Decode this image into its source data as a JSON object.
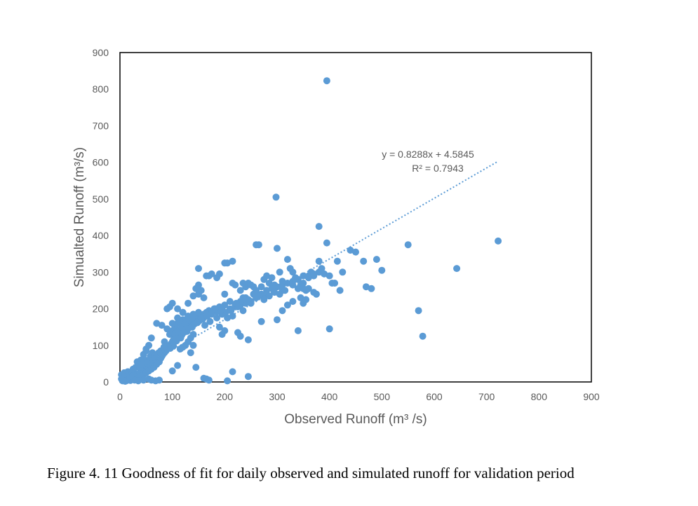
{
  "caption": "Figure 4. 11 Goodness of fit for daily observed and simulated runoff for validation period",
  "chart_data": {
    "type": "scatter",
    "xlabel": "Observed Runoff (m³ /s)",
    "ylabel": "Simualted Runoff (m³/s)",
    "xlim": [
      0,
      900
    ],
    "ylim": [
      0,
      900
    ],
    "xticks": [
      "0",
      "100",
      "200",
      "300",
      "400",
      "500",
      "600",
      "700",
      "800",
      "900"
    ],
    "yticks": [
      "0",
      "100",
      "200",
      "300",
      "400",
      "500",
      "600",
      "700",
      "800",
      "900"
    ],
    "marker_color": "#5B9BD5",
    "trendline": {
      "type": "linear",
      "slope": 0.8288,
      "intercept": 4.5845,
      "x_range": [
        10,
        720
      ],
      "equation_text": "y = 0.8288x + 4.5845",
      "r2_text": "R² = 0.7943",
      "style": "dotted"
    },
    "points": [
      [
        5,
        3
      ],
      [
        8,
        5
      ],
      [
        10,
        2
      ],
      [
        12,
        8
      ],
      [
        6,
        12
      ],
      [
        15,
        5
      ],
      [
        18,
        10
      ],
      [
        20,
        4
      ],
      [
        22,
        15
      ],
      [
        25,
        8
      ],
      [
        3,
        20
      ],
      [
        28,
        12
      ],
      [
        30,
        6
      ],
      [
        32,
        20
      ],
      [
        35,
        10
      ],
      [
        8,
        25
      ],
      [
        14,
        18
      ],
      [
        38,
        25
      ],
      [
        40,
        15
      ],
      [
        42,
        30
      ],
      [
        45,
        20
      ],
      [
        48,
        35
      ],
      [
        50,
        25
      ],
      [
        52,
        40
      ],
      [
        55,
        30
      ],
      [
        58,
        45
      ],
      [
        60,
        35
      ],
      [
        62,
        50
      ],
      [
        65,
        40
      ],
      [
        68,
        55
      ],
      [
        70,
        48
      ],
      [
        72,
        60
      ],
      [
        75,
        55
      ],
      [
        78,
        65
      ],
      [
        80,
        70
      ],
      [
        82,
        75
      ],
      [
        85,
        80
      ],
      [
        88,
        85
      ],
      [
        90,
        90
      ],
      [
        92,
        95
      ],
      [
        95,
        100
      ],
      [
        98,
        105
      ],
      [
        100,
        110
      ],
      [
        102,
        115
      ],
      [
        105,
        120
      ],
      [
        108,
        112
      ],
      [
        110,
        125
      ],
      [
        112,
        130
      ],
      [
        115,
        135
      ],
      [
        118,
        128
      ],
      [
        120,
        140
      ],
      [
        122,
        145
      ],
      [
        125,
        150
      ],
      [
        128,
        138
      ],
      [
        130,
        155
      ],
      [
        132,
        148
      ],
      [
        135,
        160
      ],
      [
        138,
        150
      ],
      [
        140,
        165
      ],
      [
        142,
        158
      ],
      [
        145,
        170
      ],
      [
        148,
        162
      ],
      [
        150,
        175
      ],
      [
        152,
        168
      ],
      [
        155,
        180
      ],
      [
        158,
        172
      ],
      [
        160,
        185
      ],
      [
        162,
        178
      ],
      [
        165,
        190
      ],
      [
        168,
        182
      ],
      [
        170,
        195
      ],
      [
        175,
        188
      ],
      [
        180,
        200
      ],
      [
        185,
        192
      ],
      [
        190,
        205
      ],
      [
        195,
        198
      ],
      [
        200,
        210
      ],
      [
        210,
        200
      ],
      [
        220,
        205
      ],
      [
        230,
        210
      ],
      [
        240,
        215
      ],
      [
        250,
        220
      ],
      [
        260,
        230
      ],
      [
        270,
        240
      ],
      [
        280,
        250
      ],
      [
        290,
        255
      ],
      [
        300,
        260
      ],
      [
        310,
        265
      ],
      [
        320,
        270
      ],
      [
        330,
        275
      ],
      [
        340,
        280
      ],
      [
        350,
        270
      ],
      [
        360,
        285
      ],
      [
        370,
        290
      ],
      [
        380,
        300
      ],
      [
        390,
        295
      ],
      [
        100,
        140
      ],
      [
        110,
        160
      ],
      [
        120,
        170
      ],
      [
        130,
        180
      ],
      [
        140,
        185
      ],
      [
        150,
        190
      ],
      [
        85,
        110
      ],
      [
        95,
        130
      ],
      [
        105,
        150
      ],
      [
        115,
        165
      ],
      [
        90,
        145
      ],
      [
        100,
        160
      ],
      [
        110,
        175
      ],
      [
        120,
        190
      ],
      [
        80,
        155
      ],
      [
        70,
        160
      ],
      [
        60,
        120
      ],
      [
        55,
        100
      ],
      [
        50,
        90
      ],
      [
        45,
        75
      ],
      [
        40,
        60
      ],
      [
        35,
        50
      ],
      [
        30,
        40
      ],
      [
        25,
        35
      ],
      [
        90,
        200
      ],
      [
        95,
        205
      ],
      [
        100,
        215
      ],
      [
        110,
        200
      ],
      [
        120,
        190
      ],
      [
        130,
        215
      ],
      [
        140,
        235
      ],
      [
        150,
        240
      ],
      [
        155,
        250
      ],
      [
        160,
        230
      ],
      [
        150,
        265
      ],
      [
        145,
        255
      ],
      [
        165,
        290
      ],
      [
        170,
        290
      ],
      [
        175,
        295
      ],
      [
        150,
        310
      ],
      [
        190,
        295
      ],
      [
        185,
        285
      ],
      [
        200,
        325
      ],
      [
        205,
        325
      ],
      [
        215,
        330
      ],
      [
        215,
        270
      ],
      [
        220,
        265
      ],
      [
        230,
        250
      ],
      [
        235,
        270
      ],
      [
        240,
        260
      ],
      [
        245,
        270
      ],
      [
        250,
        265
      ],
      [
        255,
        260
      ],
      [
        260,
        375
      ],
      [
        265,
        375
      ],
      [
        270,
        260
      ],
      [
        275,
        280
      ],
      [
        280,
        290
      ],
      [
        285,
        270
      ],
      [
        290,
        285
      ],
      [
        295,
        265
      ],
      [
        300,
        365
      ],
      [
        305,
        300
      ],
      [
        310,
        275
      ],
      [
        320,
        335
      ],
      [
        325,
        310
      ],
      [
        330,
        300
      ],
      [
        335,
        285
      ],
      [
        340,
        255
      ],
      [
        345,
        265
      ],
      [
        350,
        290
      ],
      [
        355,
        250
      ],
      [
        360,
        290
      ],
      [
        365,
        300
      ],
      [
        370,
        295
      ],
      [
        375,
        240
      ],
      [
        380,
        330
      ],
      [
        385,
        310
      ],
      [
        395,
        380
      ],
      [
        400,
        290
      ],
      [
        405,
        270
      ],
      [
        410,
        270
      ],
      [
        420,
        250
      ],
      [
        425,
        300
      ],
      [
        415,
        330
      ],
      [
        440,
        360
      ],
      [
        450,
        355
      ],
      [
        465,
        330
      ],
      [
        470,
        260
      ],
      [
        480,
        255
      ],
      [
        490,
        335
      ],
      [
        500,
        305
      ],
      [
        380,
        425
      ],
      [
        298,
        505
      ],
      [
        395,
        823
      ],
      [
        550,
        375
      ],
      [
        570,
        195
      ],
      [
        578,
        125
      ],
      [
        643,
        310
      ],
      [
        722,
        385
      ],
      [
        230,
        125
      ],
      [
        245,
        115
      ],
      [
        200,
        140
      ],
      [
        195,
        130
      ],
      [
        190,
        150
      ],
      [
        225,
        135
      ],
      [
        270,
        165
      ],
      [
        300,
        170
      ],
      [
        340,
        140
      ],
      [
        400,
        145
      ],
      [
        310,
        195
      ],
      [
        330,
        220
      ],
      [
        345,
        230
      ],
      [
        350,
        215
      ],
      [
        355,
        225
      ],
      [
        320,
        210
      ],
      [
        280,
        240
      ],
      [
        310,
        250
      ],
      [
        260,
        250
      ],
      [
        240,
        230
      ],
      [
        230,
        220
      ],
      [
        220,
        210
      ],
      [
        210,
        220
      ],
      [
        200,
        240
      ],
      [
        250,
        215
      ],
      [
        225,
        205
      ],
      [
        235,
        195
      ],
      [
        215,
        180
      ],
      [
        205,
        175
      ],
      [
        195,
        185
      ],
      [
        185,
        175
      ],
      [
        175,
        185
      ],
      [
        165,
        180
      ],
      [
        155,
        175
      ],
      [
        140,
        130
      ],
      [
        135,
        120
      ],
      [
        130,
        110
      ],
      [
        125,
        100
      ],
      [
        120,
        95
      ],
      [
        115,
        90
      ],
      [
        140,
        100
      ],
      [
        135,
        80
      ],
      [
        145,
        40
      ],
      [
        110,
        45
      ],
      [
        100,
        30
      ],
      [
        160,
        10
      ],
      [
        165,
        8
      ],
      [
        170,
        5
      ],
      [
        205,
        3
      ],
      [
        215,
        28
      ],
      [
        245,
        15
      ],
      [
        75,
        5
      ],
      [
        68,
        3
      ],
      [
        60,
        5
      ],
      [
        55,
        8
      ],
      [
        20,
        25
      ],
      [
        15,
        28
      ],
      [
        10,
        22
      ],
      [
        5,
        18
      ],
      [
        3,
        8
      ],
      [
        12,
        3
      ],
      [
        28,
        5
      ],
      [
        35,
        3
      ],
      [
        45,
        5
      ],
      [
        50,
        85
      ],
      [
        58,
        70
      ],
      [
        62,
        80
      ],
      [
        48,
        60
      ],
      [
        42,
        45
      ],
      [
        38,
        40
      ],
      [
        33,
        55
      ],
      [
        26,
        30
      ],
      [
        22,
        20
      ],
      [
        18,
        15
      ],
      [
        105,
        130
      ],
      [
        112,
        140
      ],
      [
        118,
        150
      ],
      [
        125,
        160
      ],
      [
        132,
        170
      ],
      [
        138,
        175
      ],
      [
        128,
        145
      ],
      [
        122,
        135
      ],
      [
        116,
        120
      ],
      [
        108,
        118
      ],
      [
        102,
        98
      ],
      [
        96,
        92
      ],
      [
        88,
        100
      ],
      [
        84,
        95
      ],
      [
        78,
        85
      ],
      [
        74,
        80
      ],
      [
        66,
        72
      ],
      [
        64,
        62
      ],
      [
        56,
        58
      ],
      [
        52,
        52
      ],
      [
        350,
        255
      ],
      [
        360,
        255
      ],
      [
        370,
        245
      ],
      [
        330,
        265
      ],
      [
        315,
        250
      ],
      [
        305,
        240
      ],
      [
        295,
        245
      ],
      [
        285,
        235
      ],
      [
        275,
        225
      ],
      [
        265,
        235
      ],
      [
        255,
        240
      ],
      [
        245,
        225
      ],
      [
        235,
        230
      ],
      [
        222,
        215
      ],
      [
        212,
        195
      ],
      [
        202,
        190
      ],
      [
        192,
        195
      ],
      [
        182,
        200
      ],
      [
        172,
        165
      ],
      [
        162,
        155
      ]
    ]
  }
}
